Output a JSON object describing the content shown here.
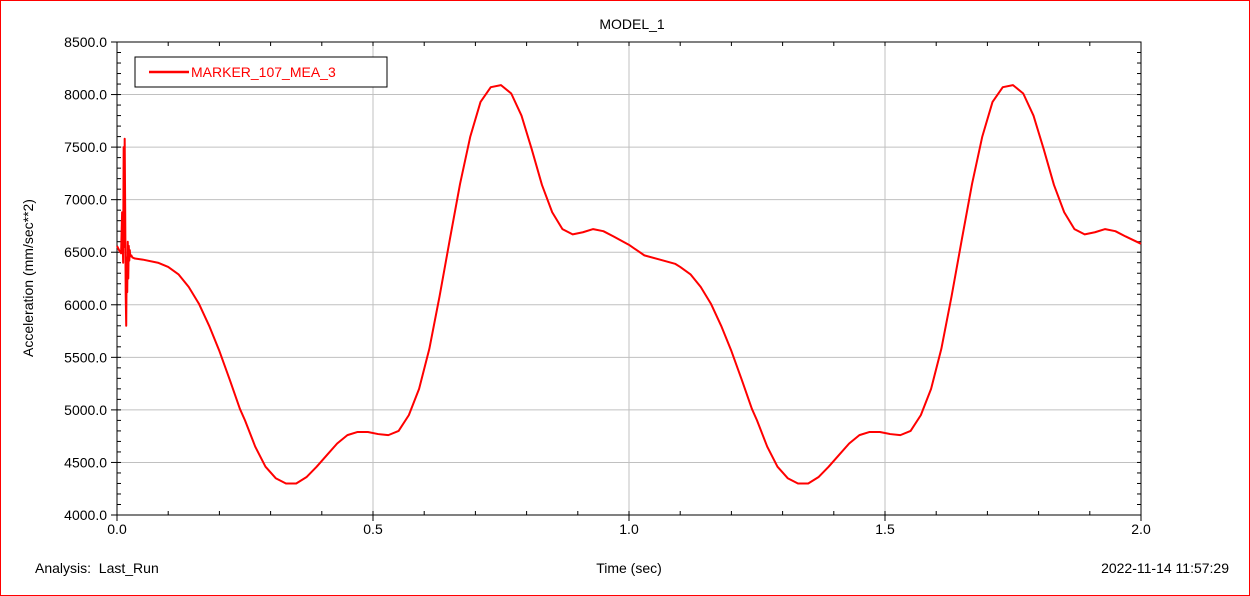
{
  "footer": {
    "analysis_label": "Analysis:  Last_Run",
    "timestamp": "2022-11-14 11:57:29"
  },
  "chart_data": {
    "type": "line",
    "title": "MODEL_1",
    "xlabel": "Time (sec)",
    "ylabel": "Acceleration (mm/sec**2)",
    "xlim": [
      0.0,
      2.0
    ],
    "ylim": [
      4000.0,
      8500.0
    ],
    "x_ticks": [
      "0.0",
      "0.5",
      "1.0",
      "1.5",
      "2.0"
    ],
    "y_ticks": [
      "4000.0",
      "4500.0",
      "5000.0",
      "5500.0",
      "6000.0",
      "6500.0",
      "7000.0",
      "7500.0",
      "8000.0",
      "8500.0"
    ],
    "grid": true,
    "legend_position": "top-left",
    "colors": {
      "frame": "#ff0000",
      "series": "#ff0000",
      "grid": "#c0c0c0",
      "axis": "#000000"
    },
    "series": [
      {
        "name": "MARKER_107_MEA_3",
        "x": [
          0.0,
          0.004,
          0.008,
          0.01,
          0.012,
          0.013,
          0.014,
          0.015,
          0.016,
          0.017,
          0.018,
          0.019,
          0.02,
          0.021,
          0.022,
          0.023,
          0.024,
          0.025,
          0.026,
          0.028,
          0.03,
          0.035,
          0.05,
          0.08,
          0.1,
          0.12,
          0.14,
          0.16,
          0.18,
          0.2,
          0.22,
          0.24,
          0.25,
          0.27,
          0.29,
          0.31,
          0.33,
          0.35,
          0.37,
          0.39,
          0.41,
          0.43,
          0.45,
          0.47,
          0.49,
          0.51,
          0.53,
          0.55,
          0.57,
          0.59,
          0.61,
          0.63,
          0.65,
          0.67,
          0.69,
          0.71,
          0.73,
          0.75,
          0.77,
          0.79,
          0.81,
          0.83,
          0.85,
          0.87,
          0.89,
          0.91,
          0.93,
          0.95,
          0.97,
          1.0,
          1.03,
          1.06,
          1.09,
          1.1,
          1.12,
          1.14,
          1.16,
          1.18,
          1.2,
          1.22,
          1.24,
          1.25,
          1.27,
          1.29,
          1.31,
          1.33,
          1.35,
          1.37,
          1.39,
          1.41,
          1.43,
          1.45,
          1.47,
          1.49,
          1.51,
          1.53,
          1.55,
          1.57,
          1.59,
          1.61,
          1.63,
          1.65,
          1.67,
          1.69,
          1.71,
          1.73,
          1.75,
          1.77,
          1.79,
          1.81,
          1.83,
          1.85,
          1.87,
          1.89,
          1.91,
          1.93,
          1.95,
          1.97,
          2.0
        ],
        "y": [
          6560,
          6520,
          6490,
          6880,
          6400,
          7500,
          6550,
          7580,
          6900,
          6100,
          5800,
          6450,
          6120,
          6600,
          6250,
          6560,
          6420,
          6520,
          6460,
          6470,
          6450,
          6440,
          6430,
          6400,
          6360,
          6290,
          6170,
          6010,
          5800,
          5560,
          5290,
          5010,
          4900,
          4650,
          4460,
          4350,
          4300,
          4300,
          4360,
          4460,
          4570,
          4680,
          4760,
          4790,
          4790,
          4770,
          4760,
          4800,
          4950,
          5200,
          5580,
          6080,
          6620,
          7150,
          7600,
          7930,
          8070,
          8090,
          8010,
          7800,
          7480,
          7140,
          6880,
          6720,
          6670,
          6690,
          6720,
          6700,
          6650,
          6570,
          6470,
          6430,
          6390,
          6360,
          6290,
          6170,
          6010,
          5800,
          5560,
          5290,
          5010,
          4900,
          4650,
          4460,
          4350,
          4300,
          4300,
          4360,
          4460,
          4570,
          4680,
          4760,
          4790,
          4790,
          4770,
          4760,
          4800,
          4950,
          5200,
          5580,
          6080,
          6620,
          7150,
          7600,
          7930,
          8070,
          8090,
          8010,
          7800,
          7480,
          7140,
          6880,
          6720,
          6670,
          6690,
          6720,
          6700,
          6650,
          6580
        ]
      }
    ]
  }
}
